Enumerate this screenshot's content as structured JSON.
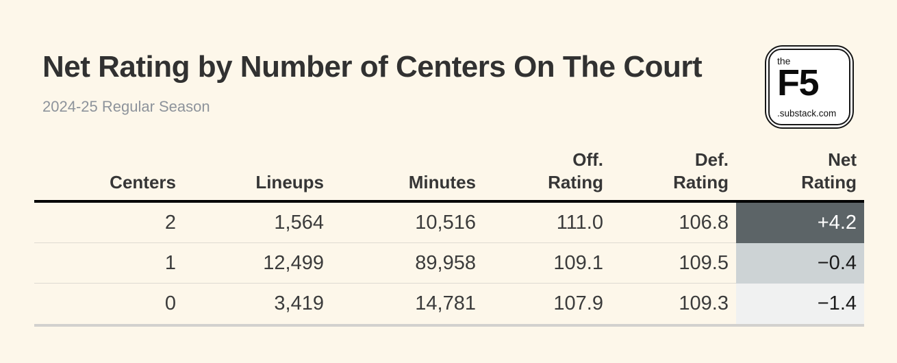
{
  "page": {
    "background": "#FDF7EA"
  },
  "header": {
    "title": "Net Rating by Number of Centers On The Court",
    "subtitle": "2024-25 Regular Season"
  },
  "logo": {
    "top_text": "the",
    "main_text": "F5",
    "bottom_text": ".substack.com"
  },
  "table": {
    "columns": [
      {
        "key": "centers",
        "lines": {
          "0": "Centers"
        }
      },
      {
        "key": "lineups",
        "lines": {
          "0": "Lineups"
        }
      },
      {
        "key": "minutes",
        "lines": {
          "0": "Minutes"
        }
      },
      {
        "key": "off_rating",
        "lines": {
          "0": "Off.",
          "1": "Rating"
        }
      },
      {
        "key": "def_rating",
        "lines": {
          "0": "Def.",
          "1": "Rating"
        }
      },
      {
        "key": "net_rating",
        "lines": {
          "0": "Net",
          "1": "Rating"
        }
      }
    ],
    "rows": [
      {
        "centers": "2",
        "lineups": "1,564",
        "minutes": "10,516",
        "off_rating": "111.0",
        "def_rating": "106.8",
        "net_rating": "+4.2",
        "net_bg": "#5C6467",
        "net_color": "#FFFFFF"
      },
      {
        "centers": "1",
        "lineups": "12,499",
        "minutes": "89,958",
        "off_rating": "109.1",
        "def_rating": "109.5",
        "net_rating": "−0.4",
        "net_bg": "#CDD3D5",
        "net_color": "#1B1B1B"
      },
      {
        "centers": "0",
        "lineups": "3,419",
        "minutes": "14,781",
        "off_rating": "107.9",
        "def_rating": "109.3",
        "net_rating": "−1.4",
        "net_bg": "#F0F1F1",
        "net_color": "#1B1B1B"
      }
    ]
  },
  "chart_data": {
    "type": "table",
    "title": "Net Rating by Number of Centers On The Court",
    "subtitle": "2024-25 Regular Season",
    "columns": [
      "Centers",
      "Lineups",
      "Minutes",
      "Off. Rating",
      "Def. Rating",
      "Net Rating"
    ],
    "rows": [
      [
        2,
        1564,
        10516,
        111.0,
        106.8,
        4.2
      ],
      [
        1,
        12499,
        89958,
        109.1,
        109.5,
        -0.4
      ],
      [
        0,
        3419,
        14781,
        107.9,
        109.3,
        -1.4
      ]
    ],
    "net_rating_cell_colors": [
      "#5C6467",
      "#CDD3D5",
      "#F0F1F1"
    ],
    "layout": {
      "numbers_alignment": "right",
      "header_rule_color": "#000000",
      "background": "#FDF7EA"
    }
  }
}
